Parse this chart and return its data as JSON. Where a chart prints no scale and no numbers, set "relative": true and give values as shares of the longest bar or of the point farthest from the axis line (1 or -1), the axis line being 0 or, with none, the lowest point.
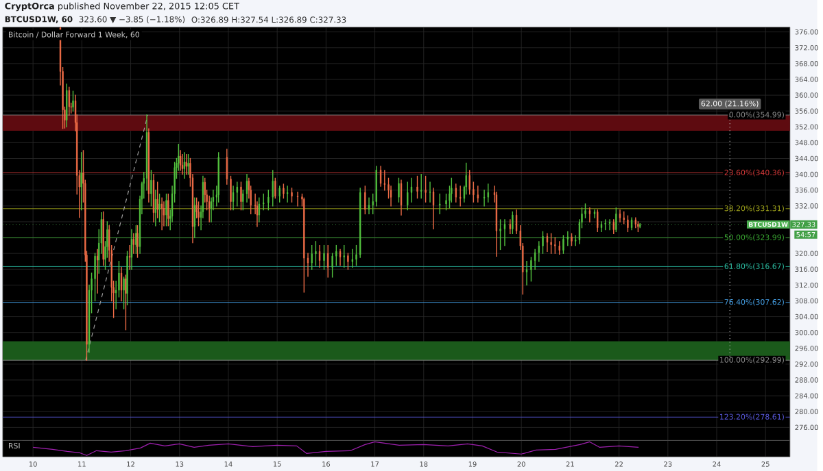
{
  "chart_data": [
    {
      "type": "candlestick",
      "title": "Bitcoin / Dollar Forward 1 Week, 60",
      "subtitle": "BTCUSD1W, 60",
      "annotations": [
        "**CryptOrca** published November 22, 2015 12:05 CET",
        "323.60 ▼ −3.85 (−1.18%)",
        "O:326.89 H:327.54 L:326.89 C:327.33",
        {
          "text": "62.00 (21.16%)",
          "x": 24.27,
          "y": 354.99
        },
        {
          "text": "327.33",
          "y": 327.33
        },
        "54:57"
      ],
      "xlim": [
        9.38,
        25.5
      ],
      "xticks": [
        10,
        11,
        12,
        13,
        14,
        15,
        16,
        17,
        18,
        19,
        20,
        21,
        22,
        23,
        24,
        25
      ],
      "ylim": [
        272.7,
        377.2
      ],
      "yticks": [
        {
          "value": 276,
          "label": "276.00"
        },
        {
          "value": 280,
          "label": "280.00"
        },
        {
          "value": 284,
          "label": "284.00"
        },
        {
          "value": 288,
          "label": "288.00"
        },
        {
          "value": 292,
          "label": "292.00"
        },
        {
          "value": 296,
          "label": "296.00"
        },
        {
          "value": 300,
          "label": "300.00"
        },
        {
          "value": 304,
          "label": "304.00"
        },
        {
          "value": 308,
          "label": "308.00"
        },
        {
          "value": 312,
          "label": "312.00"
        },
        {
          "value": 316,
          "label": "316.00"
        },
        {
          "value": 320,
          "label": "320.00"
        },
        {
          "value": 324,
          "label": null
        },
        {
          "value": 328,
          "label": null
        },
        {
          "value": 332,
          "label": "332.00"
        },
        {
          "value": 336,
          "label": "336.00"
        },
        {
          "value": 340,
          "label": "340.00"
        },
        {
          "value": 344,
          "label": "344.00"
        },
        {
          "value": 348,
          "label": "348.00"
        },
        {
          "value": 352,
          "label": "352.00"
        },
        {
          "value": 356,
          "label": "356.00"
        },
        {
          "value": 360,
          "label": "360.00"
        },
        {
          "value": 364,
          "label": "364.00"
        },
        {
          "value": 368,
          "label": "368.00"
        },
        {
          "value": 372,
          "label": "372.00"
        },
        {
          "value": 376,
          "label": "376.00"
        }
      ],
      "tick_labels": "y",
      "grid": true,
      "bands": [
        {
          "axis": "y",
          "from": 351,
          "to": 354.99,
          "color": "#5e0b10"
        },
        {
          "axis": "y",
          "from": 292.99,
          "to": 297.8,
          "color": "#1b5a1b"
        }
      ],
      "ref_lines": [
        {
          "axis": "y",
          "value": 354.99,
          "label": "0.00%(354.99)",
          "color": "#8a8a8a"
        },
        {
          "axis": "y",
          "value": 340.36,
          "label": "23.60%(340.36)",
          "color": "#d83a3a"
        },
        {
          "axis": "y",
          "value": 331.31,
          "label": "38.20%(331.31)",
          "color": "#a4a81c"
        },
        {
          "axis": "y",
          "value": 323.99,
          "label": "50.00%(323.99)",
          "color": "#3aa832"
        },
        {
          "axis": "y",
          "value": 316.67,
          "label": "61.80%(316.67)",
          "color": "#2cc0a5"
        },
        {
          "axis": "y",
          "value": 307.62,
          "label": "76.40%(307.62)",
          "color": "#45a0e6"
        },
        {
          "axis": "y",
          "value": 292.99,
          "label": "100.00%(292.99)",
          "color": "#8a8a8a"
        },
        {
          "axis": "y",
          "value": 278.61,
          "label": "123.20%(278.61)",
          "color": "#5a5ae0"
        },
        {
          "axis": "y",
          "value": 327.33,
          "label": "BTCUSD1W",
          "color": "#4caf50",
          "line_style": "dotted"
        }
      ],
      "series": [
        {
          "type": "line",
          "x": [
            11.08,
            12.35
          ],
          "values": [
            292.99,
            354.99
          ],
          "color": "#9e9e9e",
          "line_style": "dashed"
        },
        {
          "type": "line",
          "x": [
            24.27,
            24.27
          ],
          "values": [
            292.99,
            354.99
          ],
          "color": "#bdbdbd",
          "line_style": "dotted"
        },
        {
          "type": "candlestick",
          "x": [
            10.56,
            10.61,
            10.65,
            10.69,
            10.74,
            10.78,
            10.82,
            10.87,
            10.9,
            10.95,
            10.99,
            11.03,
            11.07,
            11.1,
            11.15,
            11.2,
            11.27,
            11.32,
            11.35,
            11.4,
            11.44,
            11.48,
            11.52,
            11.56,
            11.61,
            11.65,
            11.7,
            11.76,
            11.81,
            11.86,
            11.9,
            11.93,
            11.98,
            12.02,
            12.06,
            12.11,
            12.14,
            12.19,
            12.23,
            12.27,
            12.33,
            12.37,
            12.42,
            12.47,
            12.51,
            12.55,
            12.59,
            12.64,
            12.68,
            12.73,
            12.77,
            12.81,
            12.85,
            12.9,
            12.94,
            12.98,
            13.02,
            13.06,
            13.1,
            13.14,
            13.18,
            13.22,
            13.27,
            13.31,
            13.35,
            13.39,
            13.44,
            13.48,
            13.52,
            13.56,
            13.61,
            13.65,
            13.69,
            13.76,
            13.8,
            13.97,
            14.05,
            14.1,
            14.18,
            14.26,
            14.3,
            14.38,
            14.42,
            14.46,
            14.55,
            14.59,
            14.63,
            14.72,
            14.82,
            14.91,
            14.96,
            15.05,
            15.13,
            15.21,
            15.3,
            15.42,
            15.51,
            15.55,
            15.63,
            15.71,
            15.79,
            15.87,
            15.96,
            16.04,
            16.13,
            16.21,
            16.29,
            16.37,
            16.45,
            16.54,
            16.62,
            16.7,
            16.8,
            16.88,
            16.96,
            17.03,
            17.12,
            17.2,
            17.28,
            17.33,
            17.49,
            17.54,
            17.67,
            17.75,
            17.87,
            17.95,
            18.04,
            18.13,
            18.2,
            18.33,
            18.46,
            18.53,
            18.57,
            18.66,
            18.75,
            18.83,
            18.87,
            18.94,
            19.02,
            19.11,
            19.24,
            19.32,
            19.45,
            19.49,
            19.57,
            19.66,
            19.77,
            19.82,
            19.9,
            19.98,
            20.03,
            20.11,
            20.2,
            20.28,
            20.36,
            20.44,
            20.53,
            20.61,
            20.69,
            20.78,
            20.86,
            20.95,
            21.03,
            21.11,
            21.19,
            21.24,
            21.31,
            21.4,
            21.5,
            21.56,
            21.64,
            21.72,
            21.81,
            21.89,
            21.94,
            22.02,
            22.1,
            22.18,
            22.26,
            22.34,
            22.39,
            22.43
          ],
          "ohlc": [
            [
              377,
              377.2,
              362.6,
              366.0
            ],
            [
              366,
              367,
              351.6,
              356.3
            ],
            [
              356.3,
              357,
              351.7,
              353.7
            ],
            [
              353.7,
              362.8,
              352,
              361.2
            ],
            [
              361.2,
              362,
              355,
              357.1
            ],
            [
              357.1,
              358,
              355.5,
              357.0
            ],
            [
              357,
              361,
              356,
              358.6
            ],
            [
              358.6,
              360,
              351,
              353.1
            ],
            [
              353.1,
              355,
              335,
              339.7
            ],
            [
              339.7,
              341,
              329.1,
              336.8
            ],
            [
              336.8,
              345.5,
              331,
              340.3
            ],
            [
              340.3,
              346,
              333,
              337.7
            ],
            [
              337.7,
              338.5,
              318,
              319.6
            ],
            [
              319.6,
              320.5,
              292.99,
              297.0
            ],
            [
              297,
              312,
              295,
              310.7
            ],
            [
              310.7,
              315,
              305,
              313.6
            ],
            [
              313.6,
              320,
              308,
              319.3
            ],
            [
              319.3,
              321,
              310,
              318.3
            ],
            [
              318.3,
              326,
              315,
              322.6
            ],
            [
              322.6,
              330.3,
              320,
              328.6
            ],
            [
              328.6,
              330.5,
              317,
              318.5
            ],
            [
              318.5,
              323,
              316,
              321.7
            ],
            [
              321.7,
              328,
              319,
              326.0
            ],
            [
              326,
              327,
              318,
              320.8
            ],
            [
              320.8,
              322,
              308,
              311.4
            ],
            [
              311.4,
              313,
              303.8,
              310.0
            ],
            [
              310,
              313,
              306,
              310.7
            ],
            [
              310.7,
              318,
              309,
              315.0
            ],
            [
              315,
              316.5,
              308,
              310.7
            ],
            [
              310.7,
              314,
              306,
              313.6
            ],
            [
              313.6,
              314.5,
              300.7,
              309.9
            ],
            [
              309.9,
              320.5,
              307,
              319.3
            ],
            [
              319.3,
              322,
              316,
              319.0
            ],
            [
              319,
              326,
              316,
              323.6
            ],
            [
              323.6,
              325,
              320,
              322.2
            ],
            [
              322.2,
              327,
              320,
              325.1
            ],
            [
              325.1,
              327,
              319,
              321.7
            ],
            [
              321.7,
              334.5,
              320,
              333.7
            ],
            [
              333.7,
              338,
              330,
              337.7
            ],
            [
              337.7,
              340.5,
              334,
              339.0
            ],
            [
              339,
              354.99,
              336,
              350.6
            ],
            [
              350.6,
              351.5,
              333,
              335.1
            ],
            [
              335.1,
              341,
              332,
              338.5
            ],
            [
              338.5,
              340,
              328,
              330.3
            ],
            [
              330.3,
              336,
              327,
              333.7
            ],
            [
              333.7,
              338,
              329,
              331.1
            ],
            [
              331.1,
              335,
              328,
              332.5
            ],
            [
              332.5,
              334,
              326,
              331.4
            ],
            [
              331.4,
              333,
              327,
              329.7
            ],
            [
              329.7,
              335,
              327,
              333.4
            ],
            [
              333.4,
              335,
              327,
              328.8
            ],
            [
              328.8,
              331,
              326,
              329.4
            ],
            [
              329.4,
              337,
              328,
              335.1
            ],
            [
              335.1,
              343,
              333,
              341.7
            ],
            [
              341.7,
              344,
              339,
              342.8
            ],
            [
              342.8,
              347.6,
              341,
              344.6
            ],
            [
              344.6,
              346,
              341,
              342.3
            ],
            [
              342.3,
              345,
              340,
              341.4
            ],
            [
              341.4,
              345.5,
              339,
              343.1
            ],
            [
              343.1,
              345,
              340,
              342.0
            ],
            [
              342,
              345,
              340,
              342.8
            ],
            [
              342.8,
              344,
              337,
              339.1
            ],
            [
              339.1,
              340,
              322.7,
              326.8
            ],
            [
              326.8,
              334,
              324,
              332.2
            ],
            [
              332.2,
              334,
              329,
              330.5
            ],
            [
              330.5,
              333,
              327,
              329.1
            ],
            [
              329.1,
              332,
              326,
              330.5
            ],
            [
              330.5,
              339.5,
              329,
              338.0
            ],
            [
              338,
              339,
              333,
              334.8
            ],
            [
              334.8,
              336,
              331,
              333.1
            ],
            [
              333.1,
              334.5,
              328,
              331.4
            ],
            [
              331.4,
              334,
              328,
              333.1
            ],
            [
              333.1,
              336,
              331,
              334.2
            ],
            [
              334.2,
              337,
              332,
              334.8
            ],
            [
              334.8,
              345.5,
              333,
              344.3
            ],
            [
              344.3,
              346.3,
              337.5,
              338.8
            ],
            [
              338.8,
              339.5,
              331,
              333.1
            ],
            [
              333.1,
              337,
              331,
              335.4
            ],
            [
              335.4,
              338,
              332,
              336.8
            ],
            [
              336.8,
              338,
              331,
              333.1
            ],
            [
              333.1,
              336,
              331,
              335.1
            ],
            [
              335.1,
              340,
              333,
              338.3
            ],
            [
              338.3,
              339,
              334,
              336.0
            ],
            [
              336,
              337,
              330,
              332.2
            ],
            [
              332.2,
              335,
              330,
              332.0
            ],
            [
              332,
              333,
              326.8,
              329.7
            ],
            [
              329.7,
              334,
              328,
              332.5
            ],
            [
              332.5,
              335,
              331,
              332.8
            ],
            [
              332.8,
              336,
              331,
              334.2
            ],
            [
              334.2,
              341,
              332,
              338.3
            ],
            [
              338.3,
              339,
              334,
              334.5
            ],
            [
              334.5,
              337,
              333,
              336.5
            ],
            [
              336.5,
              337.5,
              334,
              335.1
            ],
            [
              335.1,
              337,
              333,
              335.4
            ],
            [
              335.4,
              336.5,
              333,
              334.5
            ],
            [
              334.5,
              335.5,
              332,
              334.3
            ],
            [
              334.3,
              335,
              332,
              333.7
            ],
            [
              333.7,
              334,
              310.2,
              318.8
            ],
            [
              318.8,
              320,
              314.2,
              317.6
            ],
            [
              317.6,
              322,
              316,
              319.9
            ],
            [
              319.9,
              323,
              317,
              320.5
            ],
            [
              320.5,
              322,
              316.5,
              318.2
            ],
            [
              318.2,
              322,
              316,
              320.0
            ],
            [
              320,
              322,
              314,
              316.5
            ],
            [
              316.5,
              320,
              314,
              319.3
            ],
            [
              319.3,
              322,
              317,
              320.5
            ],
            [
              320.5,
              321,
              317,
              319.1
            ],
            [
              319.1,
              322,
              316.5,
              319.4
            ],
            [
              319.4,
              320,
              316,
              317.9
            ],
            [
              317.9,
              321,
              316.5,
              318.5
            ],
            [
              318.5,
              322,
              317,
              319.7
            ],
            [
              319.7,
              336.5,
              319,
              335.4
            ],
            [
              335.4,
              337,
              330,
              331.1
            ],
            [
              331.1,
              334,
              330,
              332.2
            ],
            [
              332.2,
              335,
              330,
              333.1
            ],
            [
              333.1,
              342,
              332,
              341.1
            ],
            [
              341.1,
              342,
              337,
              337.7
            ],
            [
              337.7,
              341,
              336,
              337.4
            ],
            [
              337.4,
              339,
              334,
              336.0
            ],
            [
              336,
              337,
              332,
              334.2
            ],
            [
              334.2,
              339,
              333,
              337.7
            ],
            [
              337.7,
              338.5,
              329.7,
              332.2
            ],
            [
              332.2,
              338,
              331,
              335.4
            ],
            [
              335.4,
              339,
              333,
              336.8
            ],
            [
              336.8,
              339.5,
              334,
              335.7
            ],
            [
              335.7,
              340,
              334,
              336.0
            ],
            [
              336,
              339.5,
              333,
              335.4
            ],
            [
              335.4,
              338,
              333,
              335.6
            ],
            [
              335.6,
              336.5,
              326.2,
              332.2
            ],
            [
              332.2,
              335,
              330,
              332.5
            ],
            [
              332.5,
              335,
              331,
              333.4
            ],
            [
              333.4,
              337,
              331.5,
              335.1
            ],
            [
              335.1,
              339,
              333,
              336.5
            ],
            [
              336.5,
              337.5,
              333,
              334.2
            ],
            [
              334.2,
              337,
              332,
              333.9
            ],
            [
              333.9,
              337,
              333,
              336.8
            ],
            [
              336.8,
              342.8,
              335,
              339.7
            ],
            [
              339.7,
              341,
              335,
              336.2
            ],
            [
              336.2,
              338,
              333,
              334.8
            ],
            [
              334.8,
              337,
              333,
              334.0
            ],
            [
              334,
              336,
              332,
              334.2
            ],
            [
              334.2,
              337.5,
              333,
              335.4
            ],
            [
              335.4,
              337,
              333,
              334.8
            ],
            [
              334.8,
              335.5,
              319.3,
              325.7
            ],
            [
              325.7,
              328.5,
              321,
              326.2
            ],
            [
              326.2,
              328.5,
              322,
              327.4
            ],
            [
              327.4,
              328.5,
              325,
              326.2
            ],
            [
              326.2,
              330.5,
              325,
              329.7
            ],
            [
              329.7,
              331,
              325,
              325.7
            ],
            [
              325.7,
              327,
              321,
              321.9
            ],
            [
              321.9,
              322.5,
              309.7,
              315.3
            ],
            [
              315.3,
              318,
              312,
              315.9
            ],
            [
              315.9,
              319,
              313,
              318.2
            ],
            [
              318.2,
              321,
              316,
              320.2
            ],
            [
              320.2,
              323,
              318,
              321.9
            ],
            [
              321.9,
              325.5,
              320,
              324.3
            ],
            [
              324.3,
              325,
              320.5,
              322.8
            ],
            [
              322.8,
              325,
              320,
              322.2
            ],
            [
              322.2,
              324,
              320,
              321.9
            ],
            [
              321.9,
              323,
              319.8,
              320.8
            ],
            [
              320.8,
              324.5,
              320,
              323.6
            ],
            [
              323.6,
              325.5,
              322,
              324.2
            ],
            [
              324.2,
              325,
              322,
              323.1
            ],
            [
              323.1,
              324.5,
              322,
              323.4
            ],
            [
              323.4,
              328.5,
              322.5,
              327.9
            ],
            [
              327.9,
              331.5,
              326.5,
              330.0
            ],
            [
              330,
              332.5,
              329,
              330.8
            ],
            [
              330.8,
              331.5,
              328,
              330.0
            ],
            [
              330,
              331,
              329,
              330.5
            ],
            [
              330.5,
              331,
              325.5,
              326.5
            ],
            [
              326.5,
              328,
              325.5,
              327.4
            ],
            [
              327.4,
              328.5,
              326,
              327.6
            ],
            [
              327.6,
              328.5,
              326,
              327.9
            ],
            [
              327.9,
              328.5,
              325,
              326.0
            ],
            [
              326,
              331.5,
              325.5,
              330.0
            ],
            [
              330,
              331,
              328,
              329.0
            ],
            [
              329,
              330.5,
              327.5,
              328.5
            ],
            [
              328.5,
              329.5,
              325.5,
              326.5
            ],
            [
              326.5,
              329,
              326,
              328.5
            ],
            [
              328.5,
              329,
              326.5,
              327.4
            ],
            [
              327.4,
              328,
              325.5,
              326.8
            ],
            [
              326.8,
              327.54,
              326.5,
              327.33
            ]
          ],
          "colors": [
            "#ef6c47",
            "#ef6c47",
            "#ef6c47",
            "#53c23f",
            "#ef6c47",
            "#ef6c47",
            "#53c23f",
            "#ef6c47",
            "#ef6c47",
            "#ef6c47",
            "#53c23f",
            "#ef6c47",
            "#ef6c47",
            "#ef6c47",
            "#53c23f",
            "#53c23f",
            "#53c23f",
            "#ef6c47",
            "#53c23f",
            "#53c23f",
            "#ef6c47",
            "#53c23f",
            "#53c23f",
            "#ef6c47",
            "#ef6c47",
            "#ef6c47",
            "#53c23f",
            "#53c23f",
            "#ef6c47",
            "#53c23f",
            "#ef6c47",
            "#53c23f",
            "#ef6c47",
            "#53c23f",
            "#ef6c47",
            "#53c23f",
            "#ef6c47",
            "#53c23f",
            "#53c23f",
            "#53c23f",
            "#53c23f",
            "#ef6c47",
            "#53c23f",
            "#ef6c47",
            "#53c23f",
            "#ef6c47",
            "#53c23f",
            "#ef6c47",
            "#ef6c47",
            "#53c23f",
            "#ef6c47",
            "#53c23f",
            "#53c23f",
            "#53c23f",
            "#53c23f",
            "#53c23f",
            "#ef6c47",
            "#ef6c47",
            "#53c23f",
            "#ef6c47",
            "#53c23f",
            "#ef6c47",
            "#ef6c47",
            "#53c23f",
            "#ef6c47",
            "#ef6c47",
            "#53c23f",
            "#53c23f",
            "#ef6c47",
            "#ef6c47",
            "#ef6c47",
            "#53c23f",
            "#53c23f",
            "#53c23f",
            "#53c23f",
            "#ef6c47",
            "#ef6c47",
            "#53c23f",
            "#53c23f",
            "#ef6c47",
            "#53c23f",
            "#53c23f",
            "#ef6c47",
            "#ef6c47",
            "#ef6c47",
            "#ef6c47",
            "#53c23f",
            "#53c23f",
            "#53c23f",
            "#53c23f",
            "#ef6c47",
            "#53c23f",
            "#ef6c47",
            "#53c23f",
            "#ef6c47",
            "#ef6c47",
            "#ef6c47",
            "#ef6c47",
            "#ef6c47",
            "#53c23f",
            "#53c23f",
            "#ef6c47",
            "#53c23f",
            "#ef6c47",
            "#53c23f",
            "#53c23f",
            "#ef6c47",
            "#53c23f",
            "#ef6c47",
            "#53c23f",
            "#53c23f",
            "#53c23f",
            "#ef6c47",
            "#53c23f",
            "#53c23f",
            "#53c23f",
            "#ef6c47",
            "#ef6c47",
            "#ef6c47",
            "#ef6c47",
            "#53c23f",
            "#ef6c47",
            "#53c23f",
            "#53c23f",
            "#ef6c47",
            "#53c23f",
            "#ef6c47",
            "#53c23f",
            "#ef6c47",
            "#53c23f",
            "#53c23f",
            "#53c23f",
            "#53c23f",
            "#ef6c47",
            "#ef6c47",
            "#53c23f",
            "#53c23f",
            "#ef6c47",
            "#ef6c47",
            "#ef6c47",
            "#53c23f",
            "#53c23f",
            "#ef6c47",
            "#ef6c47",
            "#53c23f",
            "#53c23f",
            "#ef6c47",
            "#53c23f",
            "#ef6c47",
            "#ef6c47",
            "#ef6c47",
            "#53c23f",
            "#53c23f",
            "#53c23f",
            "#53c23f",
            "#53c23f",
            "#ef6c47",
            "#ef6c47",
            "#ef6c47",
            "#ef6c47",
            "#53c23f",
            "#53c23f",
            "#ef6c47",
            "#53c23f",
            "#53c23f",
            "#53c23f",
            "#53c23f",
            "#ef6c47",
            "#53c23f",
            "#ef6c47",
            "#53c23f",
            "#53c23f",
            "#53c23f",
            "#ef6c47",
            "#53c23f",
            "#ef6c47",
            "#ef6c47",
            "#ef6c47",
            "#53c23f",
            "#ef6c47",
            "#ef6c47",
            "#53c23f"
          ]
        }
      ]
    },
    {
      "type": "line",
      "title": "RSI",
      "relative": true,
      "color": "#a020b0",
      "grid": "x",
      "xlim": [
        9.38,
        25.5
      ],
      "xticks": [
        10,
        11,
        12,
        13,
        14,
        15,
        16,
        17,
        18,
        19,
        20,
        21,
        22,
        23,
        24,
        25
      ],
      "x": [
        10.0,
        10.4,
        10.7,
        10.95,
        11.1,
        11.3,
        11.6,
        11.9,
        12.2,
        12.4,
        12.7,
        13.0,
        13.3,
        13.6,
        14.0,
        14.5,
        15.0,
        15.4,
        15.6,
        16.0,
        16.5,
        16.8,
        17.0,
        17.5,
        18.0,
        18.5,
        18.9,
        19.2,
        19.5,
        20.0,
        20.3,
        20.7,
        21.2,
        21.4,
        21.6,
        22.0,
        22.4
      ],
      "values": [
        0.6,
        0.45,
        0.3,
        0.2,
        0.0,
        0.35,
        0.25,
        0.35,
        0.55,
        0.9,
        0.7,
        0.85,
        0.6,
        0.75,
        0.85,
        0.65,
        0.75,
        0.7,
        0.15,
        0.3,
        0.35,
        0.8,
        1.0,
        0.75,
        0.8,
        0.7,
        0.85,
        0.7,
        0.25,
        0.1,
        0.4,
        0.45,
        0.8,
        1.0,
        0.6,
        0.7,
        0.6
      ]
    }
  ]
}
